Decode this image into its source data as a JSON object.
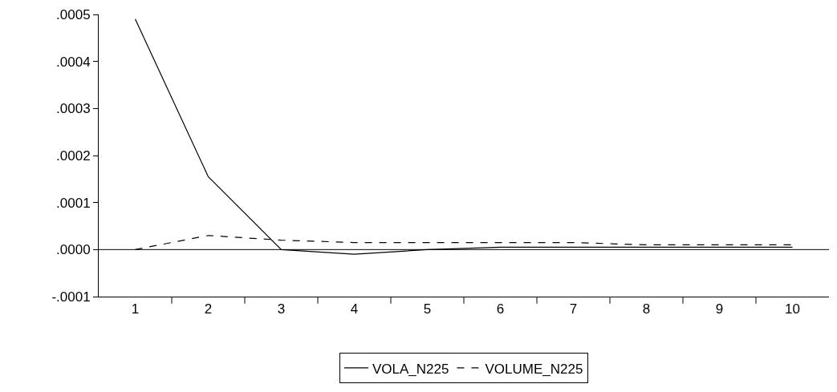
{
  "chart_data": {
    "type": "line",
    "categories": [
      "1",
      "2",
      "3",
      "4",
      "5",
      "6",
      "7",
      "8",
      "9",
      "10"
    ],
    "series": [
      {
        "name": "VOLA_N225",
        "color": "#000000",
        "line_style": "solid",
        "values": [
          0.00049,
          0.000155,
          0,
          -1e-05,
          0,
          5e-06,
          5e-06,
          5e-06,
          5e-06,
          5e-06
        ]
      },
      {
        "name": "VOLUME_N225",
        "color": "#000000",
        "line_style": "dashed",
        "values": [
          0,
          3e-05,
          2e-05,
          1.5e-05,
          1.5e-05,
          1.5e-05,
          1.5e-05,
          1e-05,
          1e-05,
          1e-05
        ]
      }
    ],
    "ylim": [
      -0.0001,
      0.0005
    ],
    "yticks": [
      {
        "value": -0.0001,
        "label": "-.0001"
      },
      {
        "value": 0,
        "label": ".0000"
      },
      {
        "value": 0.0001,
        "label": ".0001"
      },
      {
        "value": 0.0002,
        "label": ".0002"
      },
      {
        "value": 0.0003,
        "label": ".0003"
      },
      {
        "value": 0.0004,
        "label": ".0004"
      },
      {
        "value": 0.0005,
        "label": ".0005"
      }
    ],
    "ref_lines": [
      {
        "axis": "y",
        "value": 0,
        "color": "#000000"
      }
    ],
    "grid": false,
    "legend": "bottom",
    "marker": "none"
  }
}
